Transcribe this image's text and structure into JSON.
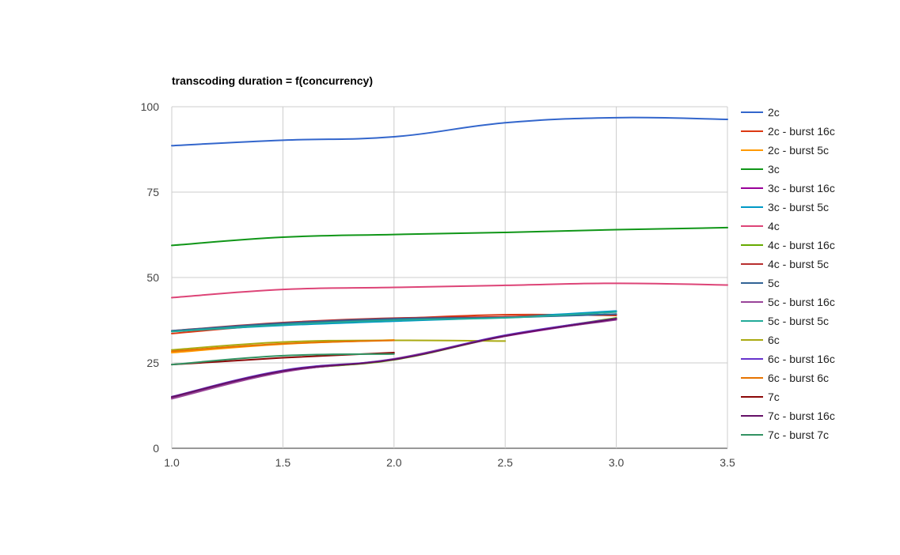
{
  "chart_data": {
    "type": "line",
    "title": "transcoding duration = f(concurrency)",
    "xlabel": "",
    "ylabel": "",
    "xlim": [
      1.0,
      3.5
    ],
    "ylim": [
      0,
      100
    ],
    "x_ticks": [
      "1.0",
      "1.5",
      "2.0",
      "2.5",
      "3.0",
      "3.5"
    ],
    "y_ticks": [
      "0",
      "25",
      "50",
      "75",
      "100"
    ],
    "grid": true,
    "legend_position": "right",
    "series": [
      {
        "name": "2c",
        "color": "#3366cc",
        "x": [
          1,
          1.5,
          2,
          2.5,
          3,
          3.5
        ],
        "y": [
          88.6,
          90.2,
          91.2,
          95.3,
          96.8,
          96.3
        ]
      },
      {
        "name": "2c - burst 16c",
        "color": "#dc3912",
        "x": [
          1,
          1.5,
          2,
          2.5,
          3
        ],
        "y": [
          33.6,
          36.3,
          37.9,
          39.1,
          38.9
        ]
      },
      {
        "name": "2c - burst 5c",
        "color": "#ff9900",
        "x": [
          1,
          1.5,
          2
        ],
        "y": [
          28.0,
          30.5,
          31.7
        ]
      },
      {
        "name": "3c",
        "color": "#109618",
        "x": [
          1,
          1.5,
          2,
          2.5,
          3,
          3.5
        ],
        "y": [
          59.4,
          61.8,
          62.6,
          63.2,
          64.0,
          64.6
        ]
      },
      {
        "name": "3c - burst 16c",
        "color": "#990099",
        "x": [
          1,
          1.5,
          2,
          2.5,
          3
        ],
        "y": [
          14.8,
          22.4,
          26.0,
          32.8,
          37.8
        ]
      },
      {
        "name": "3c - burst 5c",
        "color": "#0099c6",
        "x": [
          1,
          1.5,
          2,
          2.5,
          3
        ],
        "y": [
          34.2,
          36.0,
          37.2,
          38.4,
          40.2
        ]
      },
      {
        "name": "4c",
        "color": "#dd4477",
        "x": [
          1,
          1.5,
          2,
          2.5,
          3,
          3.5
        ],
        "y": [
          44.1,
          46.5,
          47.1,
          47.7,
          48.3,
          47.8
        ]
      },
      {
        "name": "4c - burst 16c",
        "color": "#66aa00",
        "x": [
          1,
          1.5,
          2,
          2.5,
          3
        ],
        "y": [
          15.0,
          22.5,
          25.9,
          32.9,
          38.2
        ]
      },
      {
        "name": "4c - burst 5c",
        "color": "#b82e2e",
        "x": [
          1,
          1.5,
          2,
          2.5,
          3
        ],
        "y": [
          34.4,
          36.8,
          38.1,
          38.5,
          39.2
        ]
      },
      {
        "name": "5c",
        "color": "#316395",
        "x": [
          1,
          1.5,
          2,
          2.5,
          3
        ],
        "y": [
          34.4,
          36.6,
          37.9,
          38.3,
          39.3
        ]
      },
      {
        "name": "5c - burst 16c",
        "color": "#994499",
        "x": [
          1,
          1.5,
          2,
          2.5,
          3
        ],
        "y": [
          14.5,
          22.3,
          26.2,
          33.0,
          37.6
        ]
      },
      {
        "name": "5c - burst 5c",
        "color": "#22aa99",
        "x": [
          1,
          1.5,
          2,
          2.5,
          3
        ],
        "y": [
          34.2,
          36.2,
          37.5,
          38.2,
          39.9
        ]
      },
      {
        "name": "6c",
        "color": "#aaaa11",
        "x": [
          1,
          1.5,
          2,
          2.5
        ],
        "y": [
          28.8,
          31.1,
          31.6,
          31.4
        ]
      },
      {
        "name": "6c - burst 16c",
        "color": "#6633cc",
        "x": [
          1,
          1.5,
          2,
          2.5,
          3
        ],
        "y": [
          15.1,
          22.8,
          26.1,
          33.1,
          38.0
        ]
      },
      {
        "name": "6c - burst 6c",
        "color": "#e67300",
        "x": [
          1,
          1.5,
          2
        ],
        "y": [
          28.4,
          30.6,
          31.6
        ]
      },
      {
        "name": "7c",
        "color": "#8b0707",
        "x": [
          1,
          1.5,
          2
        ],
        "y": [
          24.5,
          26.5,
          28.0
        ]
      },
      {
        "name": "7c - burst 16c",
        "color": "#651067",
        "x": [
          1,
          1.5,
          2,
          2.5,
          3
        ],
        "y": [
          15.0,
          22.6,
          26.0,
          32.9,
          37.9
        ]
      },
      {
        "name": "7c - burst 7c",
        "color": "#329262",
        "x": [
          1,
          1.5,
          2
        ],
        "y": [
          24.5,
          27.1,
          27.6
        ]
      }
    ]
  }
}
